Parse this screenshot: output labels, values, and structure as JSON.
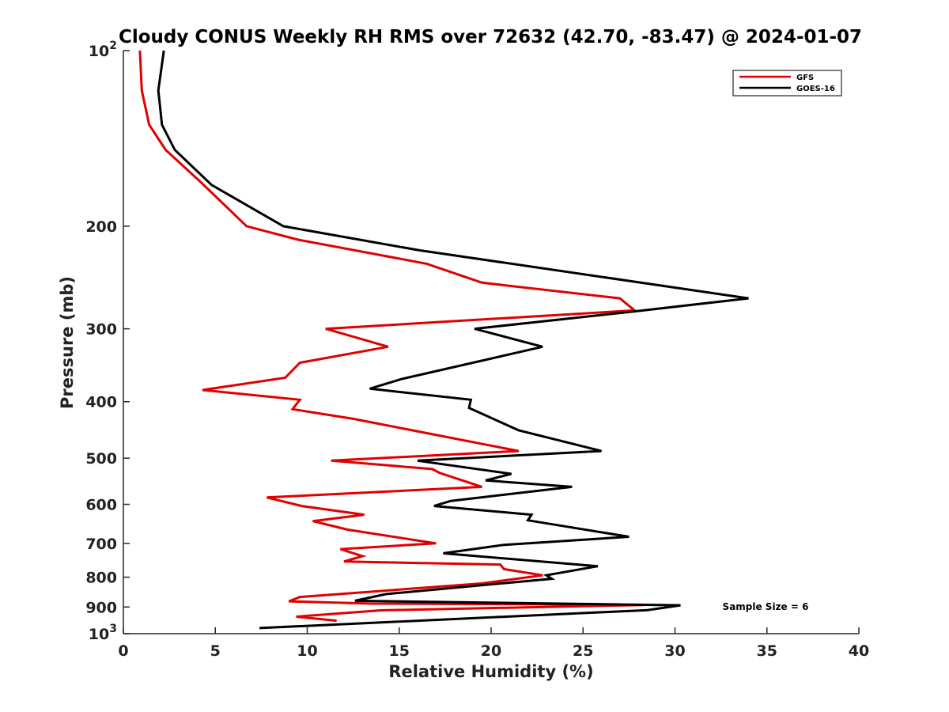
{
  "chart_data": {
    "type": "line",
    "title": "Cloudy CONUS Weekly RH RMS over 72632 (42.70, -83.47) @ 2024-01-07",
    "xlabel": "Relative Humidity (%)",
    "ylabel": "Pressure (mb)",
    "xlim": [
      0,
      40
    ],
    "ylim": [
      100,
      1000
    ],
    "y_scale": "log",
    "y_reversed": true,
    "grid": false,
    "legend_position": "top-right",
    "x_ticks": [
      "0",
      "5",
      "10",
      "15",
      "20",
      "25",
      "30",
      "35",
      "40"
    ],
    "y_ticks": [
      {
        "value": 100,
        "base": "10",
        "exp": "2"
      },
      {
        "value": 200,
        "label": "200"
      },
      {
        "value": 300,
        "label": "300"
      },
      {
        "value": 400,
        "label": "400"
      },
      {
        "value": 500,
        "label": "500"
      },
      {
        "value": 600,
        "label": "600"
      },
      {
        "value": 700,
        "label": "700"
      },
      {
        "value": 800,
        "label": "800"
      },
      {
        "value": 900,
        "label": "900"
      },
      {
        "value": 1000,
        "base": "10",
        "exp": "3"
      }
    ],
    "series": [
      {
        "name": "GFS",
        "color": "#e00000",
        "points": [
          [
            0.9,
            100
          ],
          [
            1.0,
            117
          ],
          [
            1.4,
            134
          ],
          [
            2.3,
            148
          ],
          [
            4.2,
            168
          ],
          [
            6.7,
            200
          ],
          [
            9.5,
            211
          ],
          [
            16.5,
            232
          ],
          [
            19.5,
            250
          ],
          [
            27.0,
            266
          ],
          [
            27.8,
            279
          ],
          [
            11.0,
            300
          ],
          [
            14.4,
            322
          ],
          [
            9.6,
            343
          ],
          [
            8.8,
            364
          ],
          [
            4.3,
            382
          ],
          [
            9.6,
            397
          ],
          [
            9.2,
            412
          ],
          [
            12.5,
            428
          ],
          [
            21.5,
            486
          ],
          [
            11.3,
            505
          ],
          [
            16.8,
            522
          ],
          [
            17.2,
            530
          ],
          [
            19.5,
            560
          ],
          [
            7.8,
            584
          ],
          [
            9.7,
            604
          ],
          [
            13.1,
            625
          ],
          [
            10.3,
            641
          ],
          [
            12.2,
            663
          ],
          [
            17.0,
            700
          ],
          [
            11.8,
            716
          ],
          [
            13.0,
            736
          ],
          [
            12.0,
            752
          ],
          [
            20.5,
            761
          ],
          [
            20.7,
            775
          ],
          [
            22.8,
            794
          ],
          [
            19.5,
            820
          ],
          [
            9.6,
            865
          ],
          [
            9.0,
            880
          ],
          [
            13.5,
            888
          ],
          [
            25.0,
            891
          ],
          [
            28.3,
            893
          ],
          [
            25.0,
            897
          ],
          [
            14.0,
            912
          ],
          [
            9.4,
            935
          ],
          [
            11.6,
            950
          ]
        ]
      },
      {
        "name": "GOES-16",
        "color": "#000000",
        "points": [
          [
            2.2,
            100
          ],
          [
            1.9,
            117
          ],
          [
            2.1,
            134
          ],
          [
            2.8,
            148
          ],
          [
            4.8,
            170
          ],
          [
            8.7,
            200
          ],
          [
            16.1,
            220
          ],
          [
            34.0,
            266
          ],
          [
            27.8,
            280
          ],
          [
            19.1,
            300
          ],
          [
            22.8,
            322
          ],
          [
            15.1,
            366
          ],
          [
            13.4,
            380
          ],
          [
            18.9,
            397
          ],
          [
            18.8,
            410
          ],
          [
            21.5,
            448
          ],
          [
            26.0,
            486
          ],
          [
            16.0,
            505
          ],
          [
            21.1,
            532
          ],
          [
            19.7,
            546
          ],
          [
            24.4,
            560
          ],
          [
            17.8,
            592
          ],
          [
            16.9,
            604
          ],
          [
            22.2,
            625
          ],
          [
            22.0,
            639
          ],
          [
            27.5,
            682
          ],
          [
            20.7,
            704
          ],
          [
            17.4,
            728
          ],
          [
            25.8,
            766
          ],
          [
            23.0,
            794
          ],
          [
            23.3,
            805
          ],
          [
            14.3,
            855
          ],
          [
            12.6,
            878
          ],
          [
            30.3,
            894
          ],
          [
            28.5,
            911
          ],
          [
            7.4,
            978
          ]
        ]
      }
    ],
    "annotations": [
      "Sample Size = 6"
    ]
  }
}
